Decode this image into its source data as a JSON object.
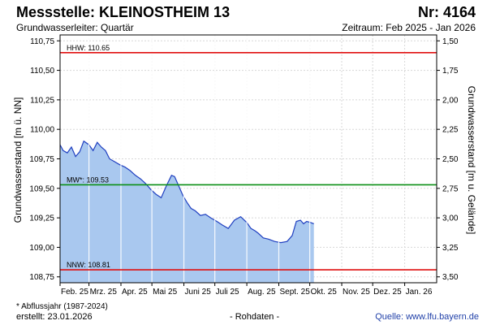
{
  "header": {
    "title": "Messstelle: KLEINOSTHEIM 13",
    "number": "Nr: 4164",
    "subtitle": "Grundwasserleiter: Quartär",
    "period": "Zeitraum: Feb 2025 - Jan 2026"
  },
  "footer": {
    "footnote": "* Abflussjahr (1987-2024)",
    "created": "erstellt:  23.01.2026",
    "raw": "- Rohdaten -",
    "source": "Quelle:  www.lfu.bayern.de"
  },
  "chart_data": {
    "type": "area",
    "ylabel_left": "Grundwasserstand [m ü. NN]",
    "ylabel_right": "Grundwasserstand [m u. Gelände]",
    "ylim_left": [
      108.7,
      110.8
    ],
    "yticks_left": [
      108.75,
      109.0,
      109.25,
      109.5,
      109.75,
      110.0,
      110.25,
      110.5,
      110.75
    ],
    "ytick_labels_left": [
      "108,75",
      "109,00",
      "109,25",
      "109,50",
      "109,75",
      "110,00",
      "110,25",
      "110,50",
      "110,75"
    ],
    "yticks_right": [
      1.5,
      1.75,
      2.0,
      2.25,
      2.5,
      2.75,
      3.0,
      3.25,
      3.5
    ],
    "ytick_labels_right": [
      "1,50",
      "1,75",
      "2,00",
      "2,25",
      "2,50",
      "2,75",
      "3,00",
      "3,25",
      "3,50"
    ],
    "right_axis_reference": {
      "left_value": 110.75,
      "right_value": 1.5
    },
    "x_categories": [
      "Feb. 25",
      "Mrz. 25",
      "Apr. 25",
      "Mai 25",
      "Juni 25",
      "Juli 25",
      "Aug. 25",
      "Sept. 25",
      "Okt. 25",
      "Nov. 25",
      "Dez. 25",
      "Jan. 26"
    ],
    "month_lengths": [
      28,
      31,
      30,
      31,
      30,
      31,
      31,
      30,
      31,
      30,
      31,
      31
    ],
    "grid": true,
    "fill_color": "#a9c8ef",
    "line_color": "#1f3fc0",
    "reference_lines": [
      {
        "label": "HHW: 110.65",
        "value": 110.65,
        "color": "#e01010"
      },
      {
        "label": "MW*: 109.53",
        "value": 109.53,
        "color": "#0b8f16"
      },
      {
        "label": "NNW: 108.81",
        "value": 108.81,
        "color": "#e01010"
      }
    ],
    "series": [
      {
        "x_dates": [
          "2025-02-01",
          "2025-02-04",
          "2025-02-08",
          "2025-02-12",
          "2025-02-16",
          "2025-02-20",
          "2025-02-24",
          "2025-03-01",
          "2025-03-05",
          "2025-03-09",
          "2025-03-13",
          "2025-03-17",
          "2025-03-21",
          "2025-03-25",
          "2025-03-31",
          "2025-04-05",
          "2025-04-10",
          "2025-04-15",
          "2025-04-20",
          "2025-04-25",
          "2025-04-30",
          "2025-05-05",
          "2025-05-10",
          "2025-05-15",
          "2025-05-20",
          "2025-05-23",
          "2025-05-27",
          "2025-05-31",
          "2025-06-04",
          "2025-06-08",
          "2025-06-12",
          "2025-06-17",
          "2025-06-22",
          "2025-06-27",
          "2025-07-03",
          "2025-07-08",
          "2025-07-14",
          "2025-07-20",
          "2025-07-26",
          "2025-08-01",
          "2025-08-05",
          "2025-08-09",
          "2025-08-12",
          "2025-08-17",
          "2025-08-22",
          "2025-08-28",
          "2025-09-03",
          "2025-09-09",
          "2025-09-14",
          "2025-09-18",
          "2025-09-22",
          "2025-09-25",
          "2025-09-28",
          "2025-10-02",
          "2025-10-05"
        ],
        "values": [
          109.87,
          109.82,
          109.8,
          109.85,
          109.77,
          109.81,
          109.9,
          109.87,
          109.82,
          109.89,
          109.85,
          109.82,
          109.75,
          109.73,
          109.7,
          109.68,
          109.65,
          109.61,
          109.58,
          109.54,
          109.49,
          109.45,
          109.42,
          109.52,
          109.61,
          109.6,
          109.52,
          109.44,
          109.38,
          109.33,
          109.31,
          109.27,
          109.28,
          109.25,
          109.22,
          109.19,
          109.16,
          109.23,
          109.26,
          109.21,
          109.16,
          109.14,
          109.12,
          109.08,
          109.07,
          109.05,
          109.04,
          109.05,
          109.1,
          109.22,
          109.23,
          109.2,
          109.22,
          109.21,
          109.2
        ]
      }
    ]
  }
}
